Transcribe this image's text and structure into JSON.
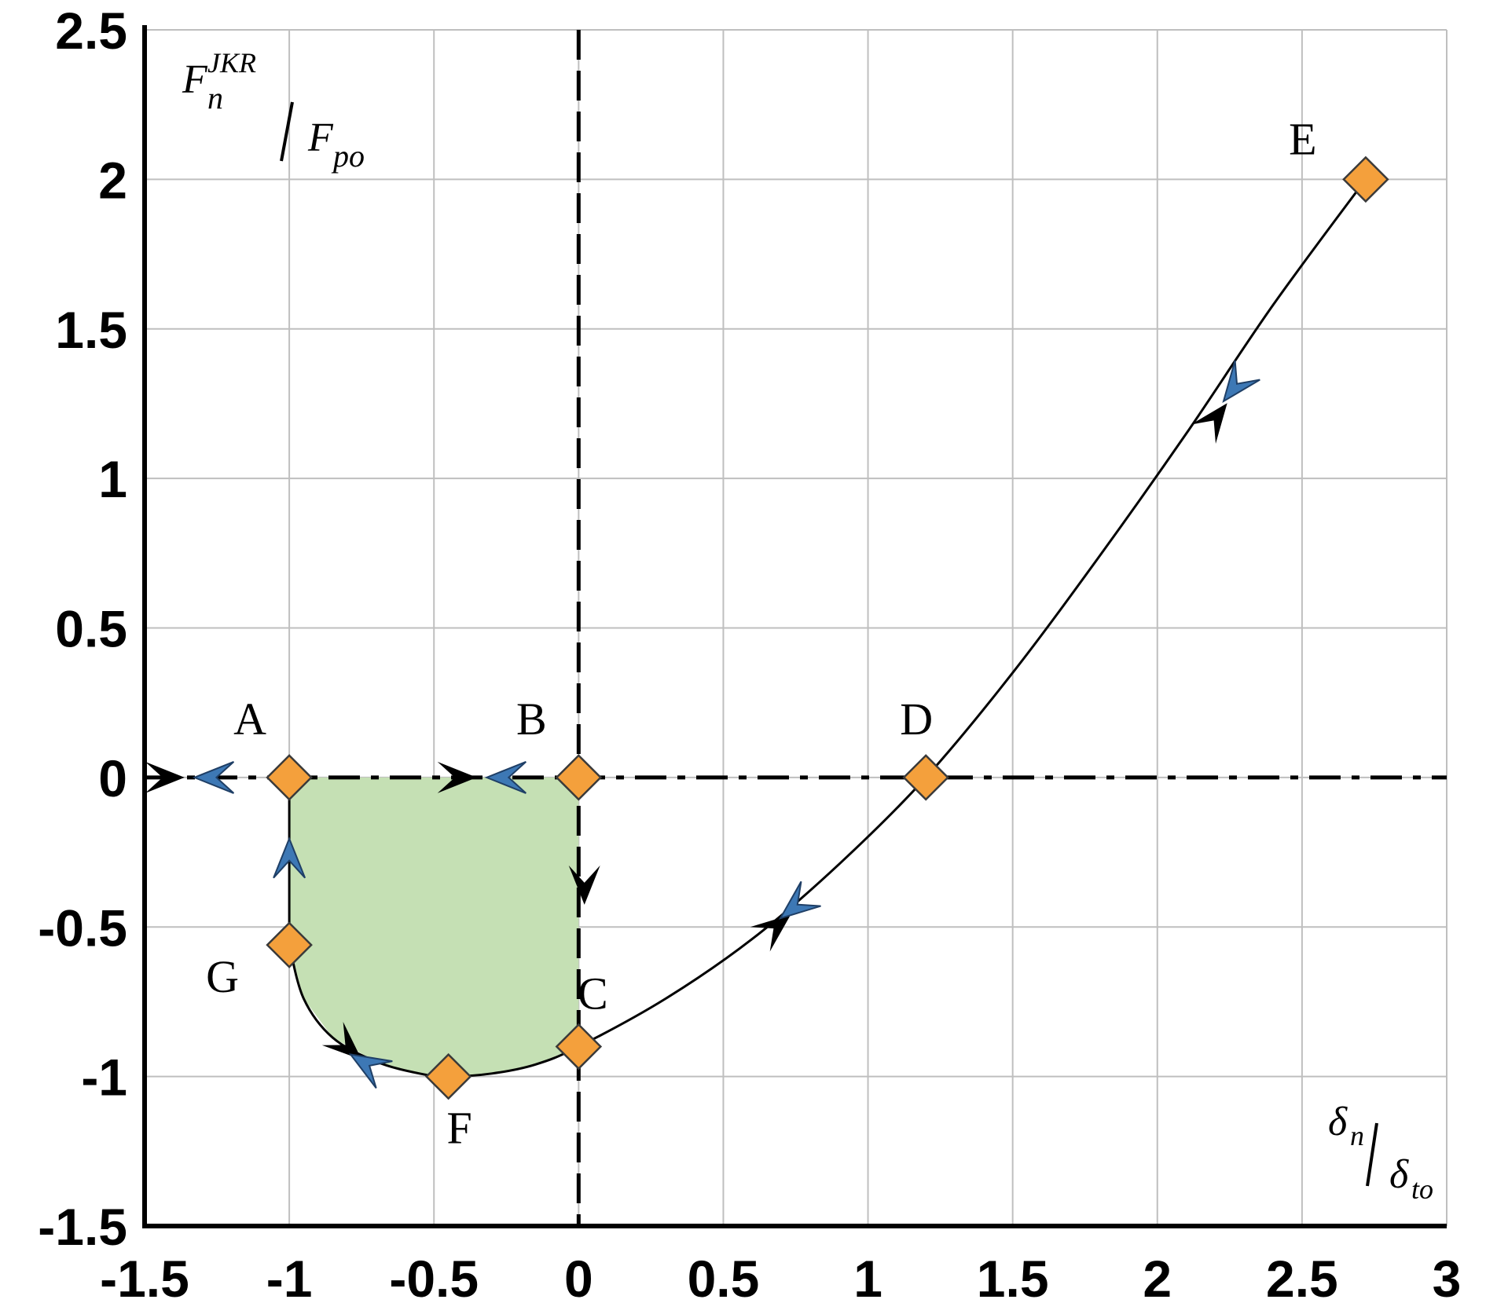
{
  "chart_data": {
    "type": "line",
    "title": "",
    "xlim": [
      -1.5,
      3
    ],
    "ylim": [
      -1.5,
      2.5
    ],
    "grid": true,
    "x_ticks": [
      -1.5,
      -1,
      -0.5,
      0,
      0.5,
      1,
      1.5,
      2,
      2.5,
      3
    ],
    "y_ticks": [
      2.5,
      2,
      1.5,
      1,
      0.5,
      0,
      -0.5,
      -1,
      -1.5
    ],
    "x_tick_labels": [
      "-1.5",
      "-1",
      "-0.5",
      "0",
      "0.5",
      "1",
      "1.5",
      "2",
      "2.5",
      "3"
    ],
    "y_tick_labels": [
      "2.5",
      "2",
      "1.5",
      "1",
      "0.5",
      "0",
      "-0.5",
      "-1",
      "-1.5"
    ],
    "ylabel": {
      "main": "F",
      "sub": "n",
      "sup": "JKR",
      "denom_main": "F",
      "denom_sub": "po"
    },
    "xlabel": {
      "main": "δ",
      "sub": "n",
      "denom_main": "δ",
      "denom_sub": "to"
    },
    "colors": {
      "marker": "#f4a03c",
      "shaded": "#c5e0b4",
      "arrow_blue": "#3d78b5",
      "arrow_black": "#000000",
      "grid": "#bfbfbf"
    },
    "points": [
      {
        "label": "A",
        "x": -1,
        "y": 0
      },
      {
        "label": "B",
        "x": 0,
        "y": 0
      },
      {
        "label": "C",
        "x": 0,
        "y": -0.9
      },
      {
        "label": "D",
        "x": 1.2,
        "y": 0
      },
      {
        "label": "E",
        "x": 2.72,
        "y": 2
      },
      {
        "label": "F",
        "x": -0.45,
        "y": -1
      },
      {
        "label": "G",
        "x": -1,
        "y": -0.56
      }
    ],
    "curve": {
      "x": [
        -1,
        -0.95,
        -0.85,
        -0.7,
        -0.55,
        -0.45,
        -0.3,
        -0.15,
        0,
        0.3,
        0.6,
        0.9,
        1.2,
        1.5,
        1.8,
        2.1,
        2.4,
        2.72
      ],
      "y": [
        -0.56,
        -0.74,
        -0.87,
        -0.95,
        -0.99,
        -1.0,
        -0.99,
        -0.96,
        -0.9,
        -0.74,
        -0.54,
        -0.29,
        0.0,
        0.35,
        0.74,
        1.15,
        1.58,
        2.0
      ]
    },
    "shaded_region": {
      "x": [
        -1,
        0,
        0,
        -0.15,
        -0.3,
        -0.45,
        -0.55,
        -0.7,
        -0.85,
        -0.95,
        -1
      ],
      "y": [
        0,
        0,
        -0.9,
        -0.96,
        -0.99,
        -1.0,
        -0.99,
        -0.95,
        -0.87,
        -0.74,
        -0.56
      ]
    },
    "arrows": [
      {
        "x": -1.43,
        "y": 0,
        "dir": "right",
        "color": "black"
      },
      {
        "x": -1.26,
        "y": 0,
        "dir": "left",
        "color": "blue"
      },
      {
        "x": -0.42,
        "y": 0,
        "dir": "right",
        "color": "black"
      },
      {
        "x": -0.25,
        "y": 0,
        "dir": "left",
        "color": "blue"
      },
      {
        "x": -1,
        "y": -0.27,
        "dir": "up",
        "color": "blue"
      },
      {
        "x": 0.02,
        "y": -0.36,
        "dir": "down",
        "color": "black"
      },
      {
        "x": -0.8,
        "y": -0.9,
        "dir": [
          1,
          -0.9
        ],
        "color": "black"
      },
      {
        "x": -0.73,
        "y": -0.96,
        "dir": [
          -1,
          0.6
        ],
        "color": "blue"
      },
      {
        "x": 0.68,
        "y": -0.5,
        "dir": [
          1,
          0.8
        ],
        "color": "black"
      },
      {
        "x": 0.75,
        "y": -0.43,
        "dir": [
          -1,
          -0.8
        ],
        "color": "blue"
      },
      {
        "x": 2.2,
        "y": 1.2,
        "dir": [
          1,
          1.3
        ],
        "color": "black"
      },
      {
        "x": 2.27,
        "y": 1.31,
        "dir": [
          -1,
          -1.3
        ],
        "color": "blue"
      }
    ]
  }
}
